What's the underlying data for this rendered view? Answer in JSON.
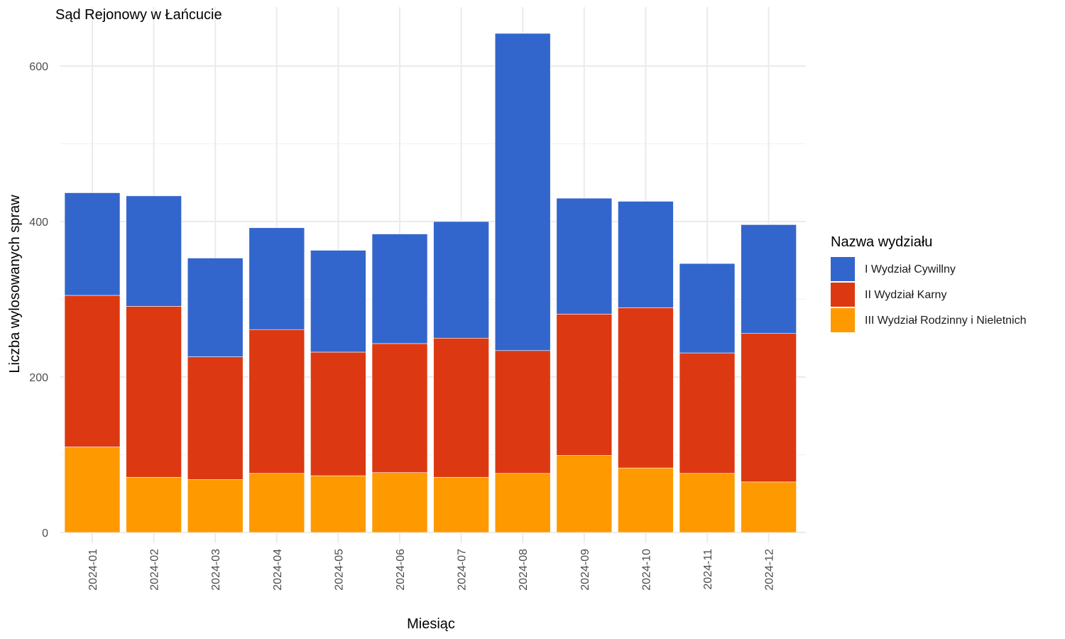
{
  "chart_data": {
    "type": "bar",
    "stacked": true,
    "title": "Sąd Rejonowy w Łańcucie",
    "xlabel": "Miesiąc",
    "ylabel": "Liczba wylosowanych spraw",
    "ylim": [
      0,
      660
    ],
    "yticks": [
      0,
      200,
      400,
      600
    ],
    "grid": true,
    "legend": {
      "title": "Nazwa wydziału",
      "placement": "right"
    },
    "categories": [
      "2024-01",
      "2024-02",
      "2024-03",
      "2024-04",
      "2024-05",
      "2024-06",
      "2024-07",
      "2024-08",
      "2024-09",
      "2024-10",
      "2024-11",
      "2024-12"
    ],
    "series": [
      {
        "name": "III Wydział Rodzinny i Nieletnich",
        "color": "#ff9900",
        "values": [
          110,
          71,
          68,
          76,
          73,
          77,
          71,
          76,
          99,
          83,
          76,
          65
        ]
      },
      {
        "name": "II Wydział Karny",
        "color": "#dc3912",
        "values": [
          195,
          220,
          158,
          185,
          159,
          166,
          179,
          158,
          182,
          206,
          155,
          191
        ]
      },
      {
        "name": "I Wydział Cywillny",
        "color": "#3366cc",
        "values": [
          132,
          142,
          127,
          131,
          131,
          141,
          150,
          408,
          149,
          137,
          115,
          140
        ]
      }
    ],
    "legend_order": [
      "I Wydział Cywillny",
      "II Wydział Karny",
      "III Wydział Rodzinny i Nieletnich"
    ]
  }
}
